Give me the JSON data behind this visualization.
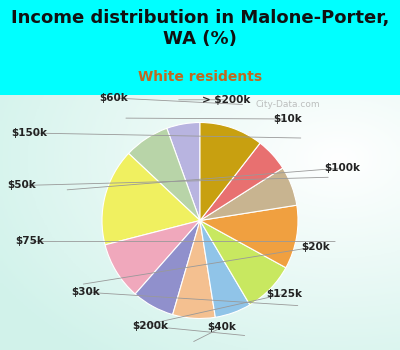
{
  "title": "Income distribution in Malone-Porter,\nWA (%)",
  "subtitle": "White residents",
  "watermark": "City-Data.com",
  "background_outer": "#00FFFF",
  "background_inner_color": "#d0ede0",
  "labels": [
    "> $200k",
    "$10k",
    "$100k",
    "$20k",
    "$125k",
    "$40k",
    "$200k",
    "$30k",
    "$75k",
    "$50k",
    "$150k",
    "$60k"
  ],
  "values": [
    5.5,
    7.5,
    16.0,
    9.5,
    7.0,
    7.0,
    6.0,
    8.5,
    10.5,
    6.5,
    5.5,
    10.5
  ],
  "colors": [
    "#b8b4e0",
    "#b8d4a8",
    "#f0f060",
    "#f0a8bc",
    "#9090cc",
    "#f4c090",
    "#90c4e8",
    "#c8e860",
    "#f0a040",
    "#c8b490",
    "#e87070",
    "#c8a010"
  ],
  "title_fontsize": 13,
  "subtitle_fontsize": 10,
  "subtitle_color": "#c06820",
  "label_fontsize": 7.5
}
